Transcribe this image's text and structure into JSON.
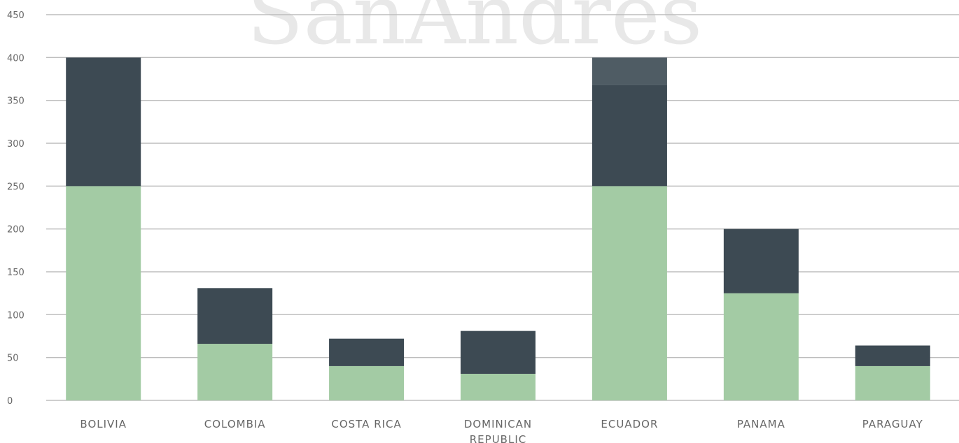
{
  "watermark": "SanAndres",
  "chart_data": {
    "type": "bar",
    "stacked": true,
    "title": "",
    "xlabel": "",
    "ylabel": "",
    "ylim": [
      0,
      450
    ],
    "yticks": [
      0,
      50,
      100,
      150,
      200,
      250,
      300,
      350,
      400,
      450
    ],
    "grid": true,
    "categories": [
      "BOLIVIA",
      "COLOMBIA",
      "COSTA RICA",
      "DOMINICAN REPUBLIC",
      "ECUADOR",
      "PANAMA",
      "PARAGUAY"
    ],
    "category_lines": [
      [
        "BOLIVIA"
      ],
      [
        "COLOMBIA"
      ],
      [
        "COSTA RICA"
      ],
      [
        "DOMINICAN",
        "REPUBLIC"
      ],
      [
        "ECUADOR"
      ],
      [
        "PANAMA"
      ],
      [
        "PARAGUAY"
      ]
    ],
    "series": [
      {
        "color": "#a3cba4",
        "values": [
          250,
          66,
          40,
          31,
          250,
          125,
          40
        ]
      },
      {
        "color": "#3d4a53",
        "values": [
          150,
          65,
          32,
          50,
          118,
          75,
          24
        ]
      },
      {
        "color": "#4f5c64",
        "values": [
          0,
          0,
          0,
          0,
          32,
          0,
          0
        ]
      }
    ],
    "colors": {
      "grid": "#bdbdbd",
      "axis_text": "#666666",
      "watermark": "#e8e8e8"
    }
  }
}
